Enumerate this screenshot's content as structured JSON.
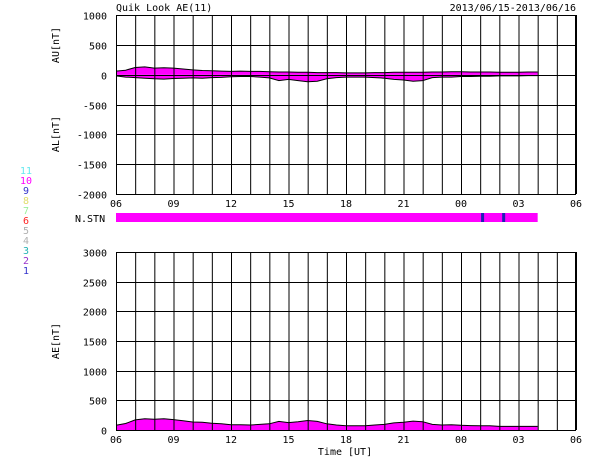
{
  "header": {
    "title": "Quik Look AE(11)",
    "date_range": "2013/06/15-2013/06/16"
  },
  "colors": {
    "fill": "#ff00ff",
    "grid": "#000000",
    "station_marker": "#1f1fb4"
  },
  "station_legend": [
    {
      "label": "11",
      "color": "#66e8ef"
    },
    {
      "label": "10",
      "color": "#ff00ff"
    },
    {
      "label": "9",
      "color": "#3333cc"
    },
    {
      "label": "8",
      "color": "#e0dc6a"
    },
    {
      "label": "7",
      "color": "#99f099"
    },
    {
      "label": "6",
      "color": "#ff2222"
    },
    {
      "label": "5",
      "color": "#b0b0b0"
    },
    {
      "label": "4",
      "color": "#b0b0b0"
    },
    {
      "label": "3",
      "color": "#23b4b4"
    },
    {
      "label": "2",
      "color": "#9933cc"
    },
    {
      "label": "1",
      "color": "#3333cc"
    }
  ],
  "station_panel": {
    "label": "N.STN",
    "data_end_hour": 28,
    "station_count_value": 10,
    "marker_hours": [
      25.1,
      26.2
    ]
  },
  "x_axis": {
    "tick_labels": [
      "06",
      "09",
      "12",
      "15",
      "18",
      "21",
      "00",
      "03",
      "06"
    ],
    "tick_hours": [
      6,
      9,
      12,
      15,
      18,
      21,
      24,
      27,
      30
    ],
    "range_hours": [
      6,
      30
    ],
    "xlabel": "Time [UT]"
  },
  "chart_data": [
    {
      "type": "area",
      "name": "AU/AL",
      "au_label": "AU[nT]",
      "al_label": "AL[nT]",
      "ylim": [
        -2000,
        1000
      ],
      "y_ticks": [
        1000,
        500,
        0,
        -500,
        -1000,
        -1500,
        -2000
      ],
      "y_tick_labels": [
        "1000",
        "500",
        "0",
        "-500",
        "-1000",
        "-1500",
        "-2000"
      ],
      "grid": true,
      "x_hours": [
        6.0,
        6.5,
        7.0,
        7.5,
        8.0,
        8.5,
        9.0,
        9.5,
        10.0,
        10.5,
        11.0,
        11.5,
        12.0,
        12.5,
        13.0,
        13.5,
        14.0,
        14.5,
        15.0,
        15.5,
        16.0,
        16.5,
        17.0,
        17.5,
        18.0,
        18.5,
        19.0,
        19.5,
        20.0,
        20.5,
        21.0,
        21.5,
        22.0,
        22.5,
        23.0,
        23.5,
        24.0,
        24.5,
        25.0,
        25.5,
        26.0,
        26.5,
        27.0,
        27.5,
        28.0
      ],
      "au": [
        60,
        75,
        120,
        130,
        110,
        115,
        110,
        95,
        80,
        70,
        65,
        60,
        55,
        60,
        55,
        55,
        50,
        45,
        45,
        40,
        40,
        35,
        35,
        35,
        30,
        30,
        30,
        35,
        35,
        40,
        40,
        40,
        40,
        45,
        45,
        50,
        50,
        45,
        45,
        45,
        40,
        40,
        40,
        45,
        45
      ],
      "al": [
        -20,
        -40,
        -50,
        -60,
        -70,
        -75,
        -65,
        -60,
        -55,
        -60,
        -50,
        -45,
        -35,
        -30,
        -30,
        -40,
        -55,
        -100,
        -80,
        -100,
        -120,
        -110,
        -70,
        -50,
        -40,
        -40,
        -40,
        -50,
        -60,
        -80,
        -90,
        -110,
        -100,
        -50,
        -40,
        -40,
        -30,
        -30,
        -25,
        -25,
        -20,
        -20,
        -20,
        -15,
        -15
      ]
    },
    {
      "type": "area",
      "name": "AE",
      "ylabel": "AE[nT]",
      "ylim": [
        0,
        3000
      ],
      "y_ticks": [
        3000,
        2500,
        2000,
        1500,
        1000,
        500,
        0
      ],
      "y_tick_labels": [
        "3000",
        "2500",
        "2000",
        "1500",
        "1000",
        "500",
        "0"
      ],
      "grid": true,
      "x_hours": [
        6.0,
        6.5,
        7.0,
        7.5,
        8.0,
        8.5,
        9.0,
        9.5,
        10.0,
        10.5,
        11.0,
        11.5,
        12.0,
        12.5,
        13.0,
        13.5,
        14.0,
        14.5,
        15.0,
        15.5,
        16.0,
        16.5,
        17.0,
        17.5,
        18.0,
        18.5,
        19.0,
        19.5,
        20.0,
        20.5,
        21.0,
        21.5,
        22.0,
        22.5,
        23.0,
        23.5,
        24.0,
        24.5,
        25.0,
        25.5,
        26.0,
        26.5,
        27.0,
        27.5,
        28.0
      ],
      "values": [
        80,
        110,
        170,
        190,
        180,
        190,
        175,
        155,
        135,
        130,
        115,
        105,
        90,
        90,
        85,
        95,
        105,
        145,
        125,
        140,
        160,
        145,
        105,
        85,
        70,
        70,
        70,
        85,
        95,
        120,
        130,
        150,
        140,
        95,
        85,
        90,
        80,
        75,
        70,
        70,
        60,
        60,
        60,
        60,
        60
      ]
    }
  ]
}
